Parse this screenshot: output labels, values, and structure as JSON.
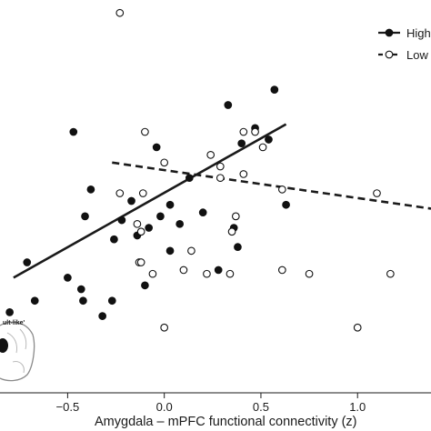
{
  "chart_data": {
    "type": "scatter",
    "title": "",
    "xlabel": "Amygdala – mPFC functional connectivity (z)",
    "ylabel": "",
    "xlim": [
      -0.85,
      1.38
    ],
    "ylim": [
      0,
      100
    ],
    "x_ticks": [
      -0.5,
      0.0,
      0.5,
      1.0
    ],
    "x_tick_labels": [
      "−0.5",
      "0.0",
      "0.5",
      "1.0"
    ],
    "grid": false,
    "legend_position": "top-right",
    "inset_label": "ult-like'",
    "series": [
      {
        "name": "High",
        "marker": "filled-circle",
        "line_style": "solid",
        "fit_line": [
          [
            -0.78,
            30
          ],
          [
            0.63,
            70
          ]
        ],
        "points": [
          [
            -0.8,
            21
          ],
          [
            -0.71,
            34
          ],
          [
            -0.67,
            24
          ],
          [
            -0.5,
            30
          ],
          [
            -0.47,
            68
          ],
          [
            -0.43,
            27
          ],
          [
            -0.42,
            24
          ],
          [
            -0.41,
            46
          ],
          [
            -0.38,
            53
          ],
          [
            -0.32,
            20
          ],
          [
            -0.27,
            24
          ],
          [
            -0.26,
            40
          ],
          [
            -0.22,
            45
          ],
          [
            -0.17,
            50
          ],
          [
            -0.14,
            41
          ],
          [
            -0.1,
            28
          ],
          [
            -0.08,
            43
          ],
          [
            -0.04,
            64
          ],
          [
            -0.02,
            46
          ],
          [
            0.03,
            49
          ],
          [
            0.03,
            37
          ],
          [
            0.08,
            44
          ],
          [
            0.13,
            56
          ],
          [
            0.2,
            47
          ],
          [
            0.28,
            32
          ],
          [
            0.33,
            75
          ],
          [
            0.36,
            43
          ],
          [
            0.38,
            38
          ],
          [
            0.4,
            65
          ],
          [
            0.47,
            69
          ],
          [
            0.54,
            66
          ],
          [
            0.57,
            79
          ],
          [
            0.63,
            49
          ]
        ]
      },
      {
        "name": "Low",
        "marker": "open-circle",
        "line_style": "dashed",
        "fit_line": [
          [
            -0.27,
            60
          ],
          [
            1.38,
            48
          ]
        ],
        "points": [
          [
            -0.23,
            99
          ],
          [
            -0.23,
            52
          ],
          [
            -0.14,
            44
          ],
          [
            -0.13,
            34
          ],
          [
            -0.12,
            34
          ],
          [
            -0.12,
            42
          ],
          [
            -0.11,
            52
          ],
          [
            -0.1,
            68
          ],
          [
            -0.06,
            31
          ],
          [
            -0.0,
            60
          ],
          [
            0.0,
            17
          ],
          [
            0.1,
            32
          ],
          [
            0.14,
            37
          ],
          [
            0.22,
            31
          ],
          [
            0.24,
            62
          ],
          [
            0.29,
            56
          ],
          [
            0.29,
            59
          ],
          [
            0.34,
            31
          ],
          [
            0.35,
            42
          ],
          [
            0.37,
            46
          ],
          [
            0.41,
            57
          ],
          [
            0.41,
            68
          ],
          [
            0.47,
            68
          ],
          [
            0.51,
            64
          ],
          [
            0.61,
            53
          ],
          [
            0.61,
            32
          ],
          [
            0.75,
            31
          ],
          [
            1.0,
            17
          ],
          [
            1.1,
            52
          ],
          [
            1.17,
            31
          ]
        ]
      }
    ]
  }
}
